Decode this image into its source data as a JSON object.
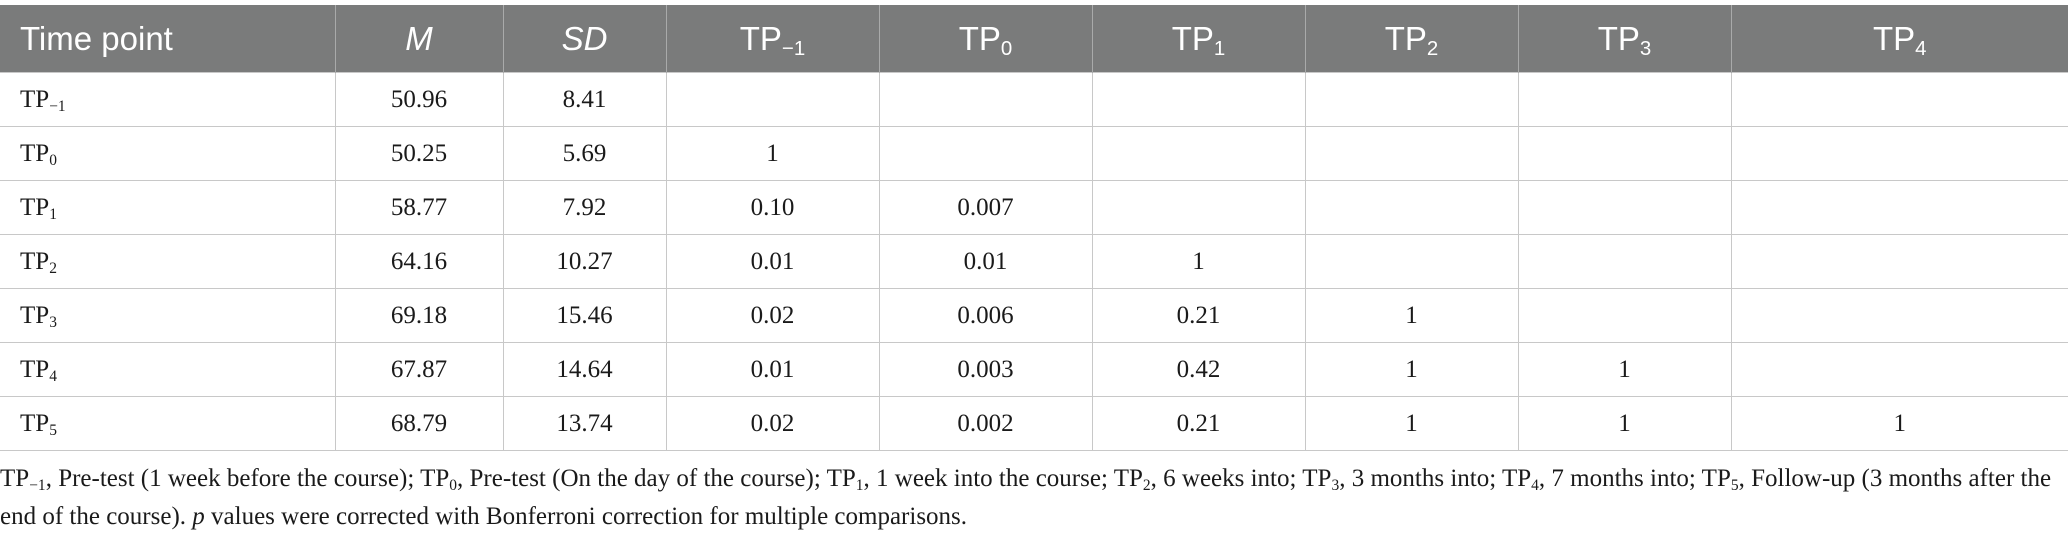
{
  "table": {
    "headers": [
      {
        "base": "Time point",
        "sub": "",
        "italic": false
      },
      {
        "base": "M",
        "sub": "",
        "italic": true
      },
      {
        "base": "SD",
        "sub": "",
        "italic": true
      },
      {
        "base": "TP",
        "sub": "−1",
        "italic": false
      },
      {
        "base": "TP",
        "sub": "0",
        "italic": false
      },
      {
        "base": "TP",
        "sub": "1",
        "italic": false
      },
      {
        "base": "TP",
        "sub": "2",
        "italic": false
      },
      {
        "base": "TP",
        "sub": "3",
        "italic": false
      },
      {
        "base": "TP",
        "sub": "4",
        "italic": false
      }
    ],
    "rows": [
      {
        "label": "TP",
        "sub": "−1",
        "cells": [
          "50.96",
          "8.41",
          "",
          "",
          "",
          "",
          "",
          ""
        ]
      },
      {
        "label": "TP",
        "sub": "0",
        "cells": [
          "50.25",
          "5.69",
          "1",
          "",
          "",
          "",
          "",
          ""
        ]
      },
      {
        "label": "TP",
        "sub": "1",
        "cells": [
          "58.77",
          "7.92",
          "0.10",
          "0.007",
          "",
          "",
          "",
          ""
        ]
      },
      {
        "label": "TP",
        "sub": "2",
        "cells": [
          "64.16",
          "10.27",
          "0.01",
          "0.01",
          "1",
          "",
          "",
          ""
        ]
      },
      {
        "label": "TP",
        "sub": "3",
        "cells": [
          "69.18",
          "15.46",
          "0.02",
          "0.006",
          "0.21",
          "1",
          "",
          ""
        ]
      },
      {
        "label": "TP",
        "sub": "4",
        "cells": [
          "67.87",
          "14.64",
          "0.01",
          "0.003",
          "0.42",
          "1",
          "1",
          ""
        ]
      },
      {
        "label": "TP",
        "sub": "5",
        "cells": [
          "68.79",
          "13.74",
          "0.02",
          "0.002",
          "0.21",
          "1",
          "1",
          "1"
        ]
      }
    ]
  },
  "footnote": {
    "defs": [
      {
        "sub": "−1",
        "text": ", Pre-test (1 week before the course); "
      },
      {
        "sub": "0",
        "text": ", Pre-test (On the day of the course); "
      },
      {
        "sub": "1",
        "text": ", 1 week into the course; "
      },
      {
        "sub": "2",
        "text": ", 6 weeks into; "
      },
      {
        "sub": "3",
        "text": ", 3 months into; "
      },
      {
        "sub": "4",
        "text": ", 7 months into; "
      },
      {
        "sub": "5",
        "text": ", Follow-up (3 months after the end of the course). "
      }
    ],
    "prefix": "TP",
    "p_symbol": "p",
    "p_text": " values were corrected with Bonferroni correction for multiple comparisons."
  }
}
